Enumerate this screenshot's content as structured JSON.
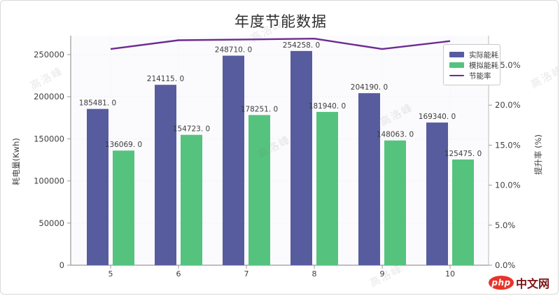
{
  "page": {
    "watermark_text": "高洛峰",
    "logo": {
      "php": "php",
      "cn": "中文网"
    }
  },
  "chart_data": {
    "type": "bar+line",
    "title": "年度节能数据",
    "categories": [
      "5",
      "6",
      "7",
      "8",
      "9",
      "10"
    ],
    "left_axis": {
      "label": "耗电量(Kwh)",
      "ticks": [
        "0",
        "50000",
        "100000",
        "150000",
        "200000",
        "250000"
      ],
      "tick_values": [
        0,
        50000,
        100000,
        150000,
        200000,
        250000
      ],
      "range": [
        0,
        272000
      ]
    },
    "right_axis": {
      "label": "提升率 (%)",
      "ticks": [
        "0.0%",
        "5.0%",
        "10.0%",
        "15.0%",
        "20.0%",
        "25.0%"
      ],
      "tick_values": [
        0,
        5,
        10,
        15,
        20,
        25
      ],
      "range": [
        0,
        28.7
      ]
    },
    "series": [
      {
        "name": "实际能耗",
        "type": "bar",
        "color": "#575c9f",
        "values": [
          185481,
          214115,
          248710,
          254258,
          204190,
          169340
        ],
        "labels": [
          "185481. 0",
          "214115. 0",
          "248710. 0",
          "254258. 0",
          "204190. 0",
          "169340. 0"
        ]
      },
      {
        "name": "模拟能耗",
        "type": "bar",
        "color": "#55c37e",
        "values": [
          136069,
          154723,
          178251,
          181940,
          148063,
          125475
        ],
        "labels": [
          "136069. 0",
          "154723. 0",
          "178251. 0",
          "181940. 0",
          "148063. 0",
          "125475. 0"
        ]
      },
      {
        "name": "节能率",
        "type": "line",
        "axis": "right",
        "color": "#6e2b8f",
        "values_pct": [
          27.0,
          28.1,
          28.2,
          28.3,
          27.0,
          28.0
        ]
      }
    ],
    "legend_position": "upper right",
    "grid": true
  }
}
